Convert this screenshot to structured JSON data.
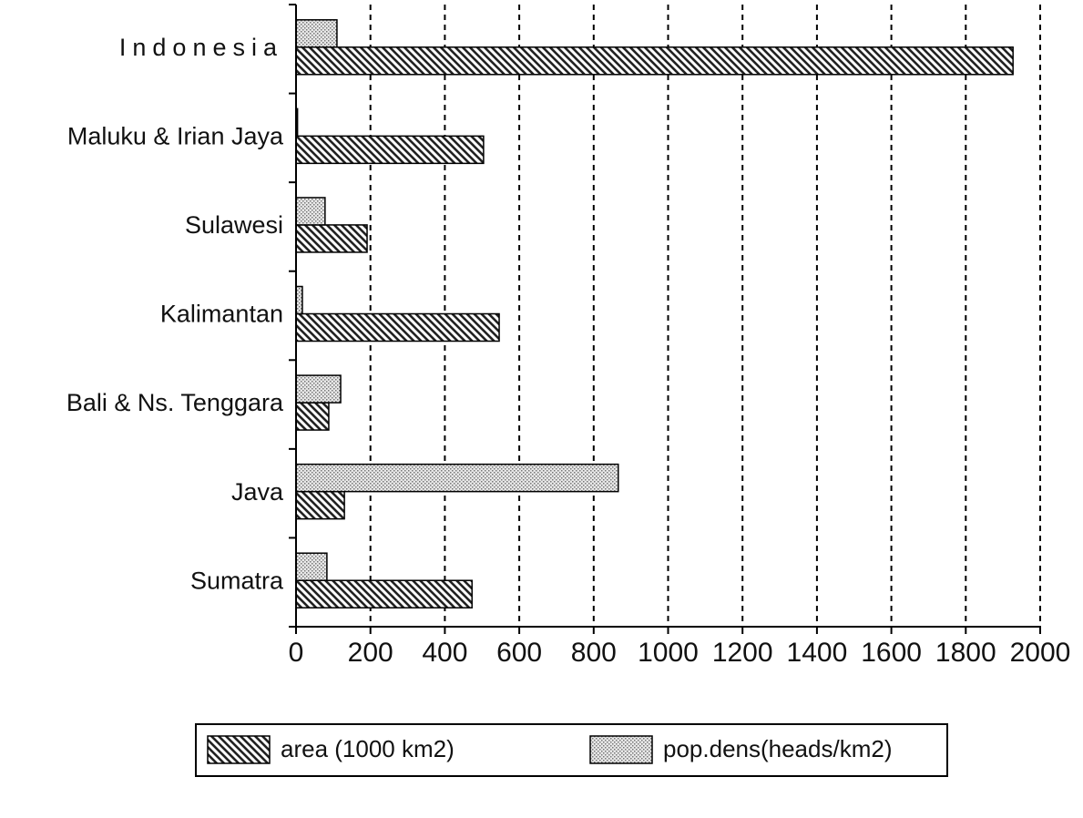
{
  "chart_data": {
    "type": "barh",
    "categories": [
      "Sumatra",
      "Java",
      "Bali & Ns. Tenggara",
      "Kalimantan",
      "Sulawesi",
      "Maluku & Irian Jaya",
      "Indonesia"
    ],
    "series": [
      {
        "name": "area (1000 km2)",
        "color": "#222222",
        "values": [
          473,
          130,
          88,
          546,
          191,
          504,
          1927
        ]
      },
      {
        "name": "pop.dens(heads/km2)",
        "color": "#777777",
        "values": [
          83,
          866,
          120,
          17,
          78,
          4,
          110
        ]
      }
    ],
    "xlim": [
      0,
      2000
    ],
    "xticks": [
      0,
      200,
      400,
      600,
      800,
      1000,
      1200,
      1400,
      1600,
      1800,
      2000
    ],
    "grid": true,
    "legend": "bottom"
  }
}
